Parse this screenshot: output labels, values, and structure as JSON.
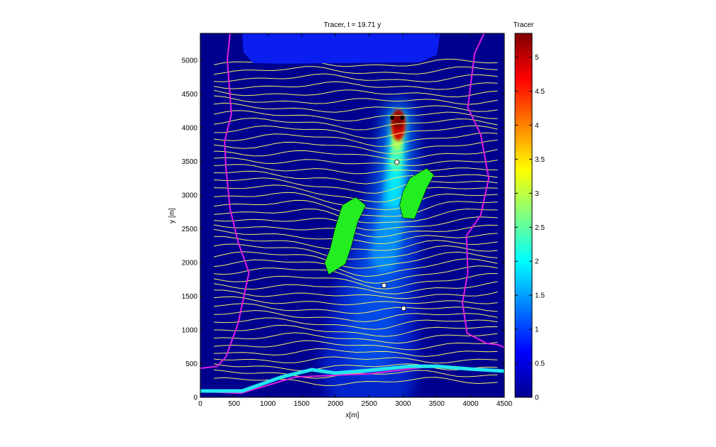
{
  "figure": {
    "title": "Tracer,   t = 19.71 y",
    "colorbar_title": "Tracer"
  },
  "chart_data": {
    "type": "heatmap",
    "title": "Tracer,   t = 19.71 y",
    "xlabel": "x[m]",
    "ylabel": "y [m]",
    "xlim": [
      0,
      4500
    ],
    "ylim": [
      0,
      5400
    ],
    "x_ticks": [
      0,
      500,
      1000,
      1500,
      2000,
      2500,
      3000,
      3500,
      4000,
      4500
    ],
    "y_ticks": [
      0,
      500,
      1000,
      1500,
      2000,
      2500,
      3000,
      3500,
      4000,
      4500,
      5000
    ],
    "colorbar": {
      "label": "Tracer",
      "range": [
        0,
        5.35
      ],
      "ticks": [
        0,
        0.5,
        1,
        1.5,
        2,
        2.5,
        3,
        3.5,
        4,
        4.5,
        5
      ],
      "colormap": "jet"
    },
    "background_color": "#00008f",
    "plume": {
      "source": [
        2930,
        4120
      ],
      "max_value": 5.35,
      "path": [
        [
          2930,
          4120
        ],
        [
          2900,
          3500
        ],
        [
          2860,
          2900
        ],
        [
          2760,
          2300
        ],
        [
          2640,
          1700
        ],
        [
          2560,
          1100
        ],
        [
          2500,
          500
        ]
      ]
    },
    "source_wells": [
      [
        2840,
        4150
      ],
      [
        2990,
        4150
      ]
    ],
    "observation_points": [
      {
        "x": 2910,
        "y": 3490
      },
      {
        "x": 2720,
        "y": 1660
      },
      {
        "x": 3010,
        "y": 1320
      }
    ],
    "lake": {
      "color": "#0a1ef0",
      "polygon": [
        [
          620,
          5400
        ],
        [
          3550,
          5400
        ],
        [
          3500,
          5080
        ],
        [
          3250,
          4970
        ],
        [
          1200,
          4950
        ],
        [
          780,
          4960
        ],
        [
          640,
          5120
        ]
      ]
    },
    "islands": [
      {
        "color": "#22ee22",
        "polygon": [
          [
            2300,
            2970
          ],
          [
            2450,
            2850
          ],
          [
            2330,
            2600
          ],
          [
            2240,
            2250
          ],
          [
            2150,
            1980
          ],
          [
            1900,
            1820
          ],
          [
            1840,
            2000
          ],
          [
            1920,
            2200
          ],
          [
            1990,
            2500
          ],
          [
            2100,
            2850
          ]
        ]
      },
      {
        "color": "#22ee22",
        "polygon": [
          [
            3350,
            3400
          ],
          [
            3460,
            3300
          ],
          [
            3350,
            3100
          ],
          [
            3250,
            2850
          ],
          [
            3170,
            2650
          ],
          [
            3000,
            2660
          ],
          [
            2950,
            2850
          ],
          [
            3000,
            3050
          ],
          [
            3100,
            3250
          ]
        ]
      }
    ],
    "domain_boundary": {
      "color": "#e020e0",
      "left": [
        [
          440,
          5400
        ],
        [
          400,
          5000
        ],
        [
          460,
          4200
        ],
        [
          360,
          3800
        ],
        [
          380,
          3400
        ],
        [
          440,
          2800
        ],
        [
          560,
          2300
        ],
        [
          720,
          1850
        ],
        [
          560,
          1100
        ],
        [
          380,
          600
        ],
        [
          250,
          460
        ],
        [
          0,
          430
        ]
      ],
      "right": [
        [
          4200,
          5400
        ],
        [
          4060,
          5100
        ],
        [
          3960,
          4300
        ],
        [
          4150,
          3900
        ],
        [
          4270,
          3250
        ],
        [
          4150,
          2700
        ],
        [
          3940,
          2400
        ],
        [
          3960,
          1850
        ],
        [
          3880,
          1400
        ],
        [
          3950,
          950
        ],
        [
          4240,
          800
        ],
        [
          4410,
          780
        ],
        [
          4500,
          740
        ]
      ],
      "bottom": [
        [
          0,
          90
        ],
        [
          600,
          60
        ],
        [
          1400,
          300
        ],
        [
          2500,
          350
        ],
        [
          3500,
          470
        ],
        [
          4500,
          390
        ]
      ]
    },
    "river": {
      "color": "#22e6f0",
      "line": [
        [
          0,
          95
        ],
        [
          620,
          95
        ],
        [
          1200,
          300
        ],
        [
          1650,
          410
        ],
        [
          2000,
          360
        ],
        [
          2500,
          400
        ],
        [
          3100,
          460
        ],
        [
          3500,
          460
        ],
        [
          4000,
          420
        ],
        [
          4500,
          390
        ]
      ]
    },
    "contours": {
      "color": "#f0f066",
      "count": 44,
      "y_range": [
        240,
        4960
      ]
    }
  }
}
